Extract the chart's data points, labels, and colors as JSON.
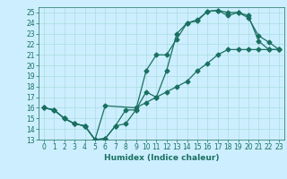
{
  "xlabel": "Humidex (Indice chaleur)",
  "bg_color": "#cceeff",
  "grid_color": "#aadddd",
  "line_color": "#1a7060",
  "ylim": [
    13,
    25.5
  ],
  "xlim": [
    -0.5,
    23.5
  ],
  "yticks": [
    13,
    14,
    15,
    16,
    17,
    18,
    19,
    20,
    21,
    22,
    23,
    24,
    25
  ],
  "xticks": [
    0,
    1,
    2,
    3,
    4,
    5,
    6,
    7,
    8,
    9,
    10,
    11,
    12,
    13,
    14,
    15,
    16,
    17,
    18,
    19,
    20,
    21,
    22,
    23
  ],
  "lines": [
    {
      "x": [
        0,
        1,
        2,
        3,
        4,
        5,
        6,
        7,
        8,
        9,
        10,
        11,
        12,
        13,
        14,
        15,
        16,
        17,
        18,
        19,
        20,
        21,
        22,
        23
      ],
      "y": [
        16,
        15.8,
        15.0,
        14.5,
        14.3,
        13.0,
        13.1,
        14.3,
        14.5,
        15.8,
        19.5,
        21.0,
        21.0,
        22.5,
        24.0,
        24.3,
        25.1,
        25.2,
        24.7,
        25.0,
        24.5,
        22.8,
        22.2,
        21.5
      ]
    },
    {
      "x": [
        0,
        1,
        2,
        3,
        4,
        5,
        6,
        7,
        8,
        9,
        10,
        11,
        12,
        13,
        14,
        15,
        16,
        17,
        18,
        19,
        20,
        21,
        22,
        23
      ],
      "y": [
        16,
        15.8,
        15.0,
        14.5,
        14.3,
        13.0,
        13.1,
        14.3,
        15.8,
        15.8,
        17.5,
        17.0,
        19.5,
        23.0,
        24.0,
        24.2,
        25.1,
        25.2,
        25.0,
        25.0,
        24.7,
        22.3,
        21.5,
        21.5
      ]
    },
    {
      "x": [
        0,
        1,
        2,
        3,
        4,
        5,
        6,
        9,
        10,
        11,
        12,
        13,
        14,
        15,
        16,
        17,
        18,
        19,
        20,
        21,
        22,
        23
      ],
      "y": [
        16,
        15.8,
        15.0,
        14.5,
        14.3,
        13.0,
        16.2,
        16.0,
        16.5,
        17.0,
        17.5,
        18.0,
        18.5,
        19.5,
        20.2,
        21.0,
        21.5,
        21.5,
        21.5,
        21.5,
        21.5,
        21.5
      ]
    }
  ],
  "marker": "D",
  "markersize": 2.5,
  "linewidth": 0.9,
  "tick_fontsize": 5.5,
  "label_fontsize": 6.5
}
